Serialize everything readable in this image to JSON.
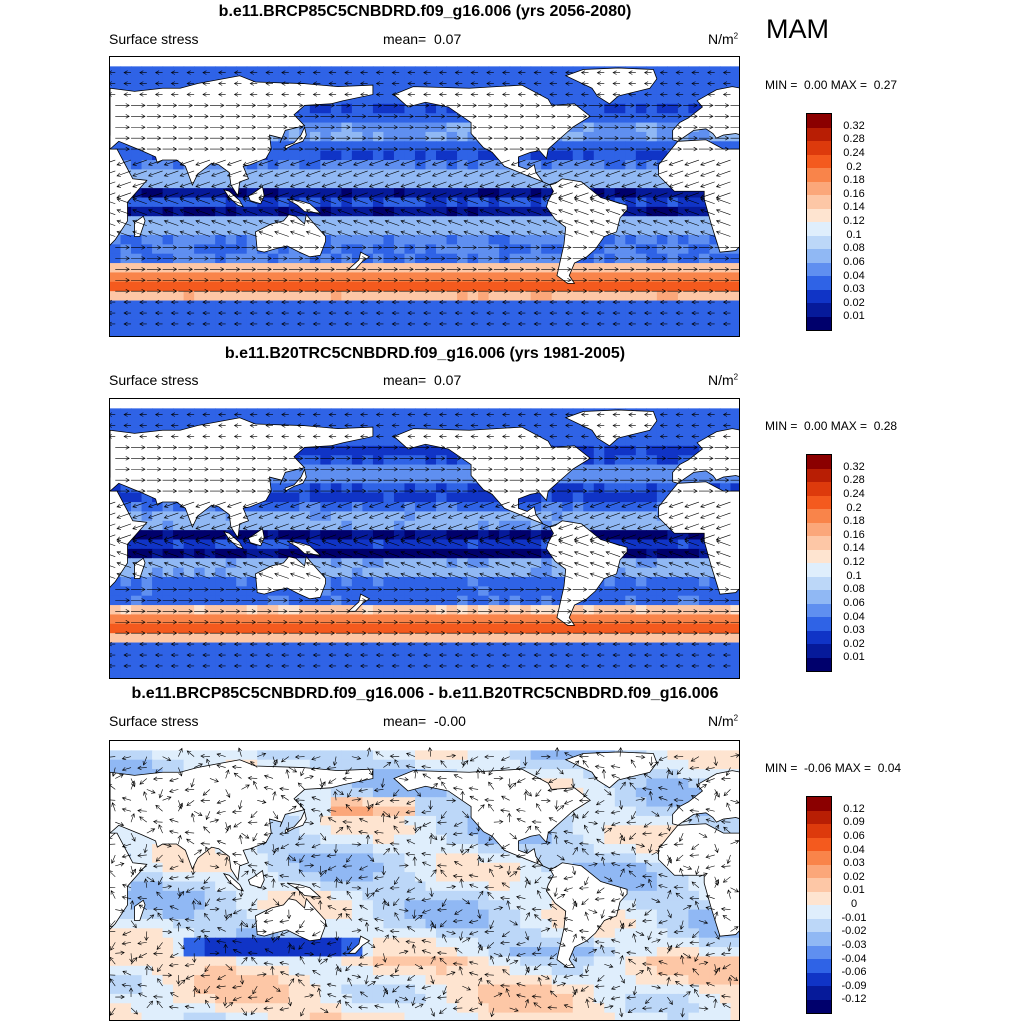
{
  "season": "MAM",
  "panels": [
    {
      "title": "b.e11.BRCP85C5CNBDRD.f09_g16.006 (yrs 2056-2080)",
      "variable": "Surface stress",
      "mean_label": "mean=",
      "mean_value": "0.07",
      "units": "N/m",
      "units_exp": "2",
      "min_label": "MIN =",
      "min_value": "0.00",
      "max_label": "MAX =",
      "max_value": "0.27",
      "colorbar_labels": [
        "0.32",
        "0.28",
        "0.24",
        "0.2",
        "0.18",
        "0.16",
        "0.14",
        "0.12",
        "0.1",
        "0.08",
        "0.06",
        "0.04",
        "0.03",
        "0.02",
        "0.01"
      ]
    },
    {
      "title": "b.e11.B20TRC5CNBDRD.f09_g16.006 (yrs 1981-2005)",
      "variable": "Surface stress",
      "mean_label": "mean=",
      "mean_value": "0.07",
      "units": "N/m",
      "units_exp": "2",
      "min_label": "MIN =",
      "min_value": "0.00",
      "max_label": "MAX =",
      "max_value": "0.28",
      "colorbar_labels": [
        "0.32",
        "0.28",
        "0.24",
        "0.2",
        "0.18",
        "0.16",
        "0.14",
        "0.12",
        "0.1",
        "0.08",
        "0.06",
        "0.04",
        "0.03",
        "0.02",
        "0.01"
      ]
    },
    {
      "title": "b.e11.BRCP85C5CNBDRD.f09_g16.006 - b.e11.B20TRC5CNBDRD.f09_g16.006",
      "variable": "Surface stress",
      "mean_label": "mean=",
      "mean_value": "-0.00",
      "units": "N/m",
      "units_exp": "2",
      "min_label": "MIN =",
      "min_value": "-0.06",
      "max_label": "MAX =",
      "max_value": "0.04",
      "colorbar_labels": [
        "0.12",
        "0.09",
        "0.06",
        "0.04",
        "0.03",
        "0.02",
        "0.01",
        "0",
        "-0.01",
        "-0.02",
        "-0.03",
        "-0.04",
        "-0.06",
        "-0.09",
        "-0.12"
      ]
    }
  ],
  "colors": {
    "colorbar": [
      "#8b0000",
      "#b81e04",
      "#dd3a0c",
      "#f45a1e",
      "#f9844a",
      "#fba77a",
      "#fdc7a6",
      "#fee4d0",
      "#dfeefc",
      "#bcd7f8",
      "#90b8f4",
      "#5f8ff0",
      "#2f63e6",
      "#1034c6",
      "#061a9a",
      "#00006c"
    ],
    "ocean_deep": "#0b1fa8",
    "ocean_mid": "#3b6fe6",
    "ocean_light": "#a9c8f6",
    "jet_red": "#e3431a",
    "land": "#ffffff",
    "diff_pos": "#fcd8bf",
    "diff_neg": "#d4e6fb"
  }
}
